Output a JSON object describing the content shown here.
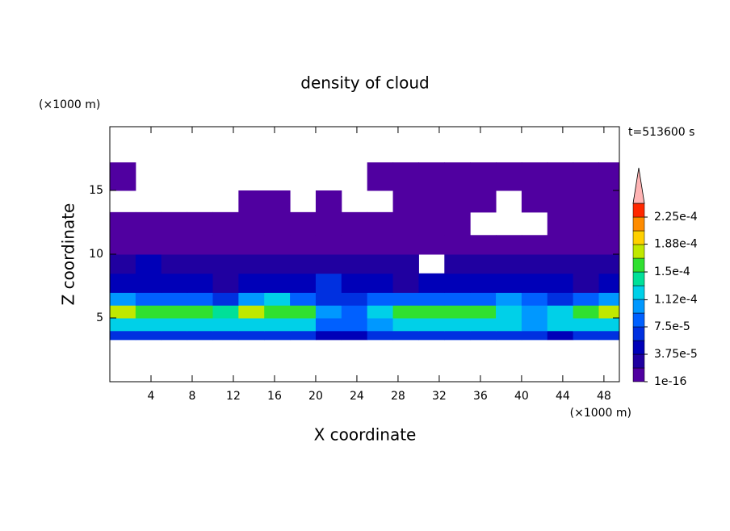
{
  "chart_data": {
    "type": "contour",
    "title": "density of cloud",
    "xlabel": "X coordinate",
    "ylabel": "Z coordinate",
    "xunit": "(×1000 m)",
    "yunit": "(×1000 m)",
    "time_label": "t=513600 s",
    "xlim": [
      0,
      49.5
    ],
    "ylim": [
      0,
      20
    ],
    "xticks": [
      4,
      8,
      12,
      16,
      20,
      24,
      28,
      32,
      36,
      40,
      44,
      48
    ],
    "yticks": [
      5,
      10,
      15
    ],
    "xbins": [
      0,
      2.5,
      5,
      7.5,
      10,
      12.5,
      15,
      17.5,
      20,
      22.5,
      25,
      27.5,
      30,
      32.5,
      35,
      37.5,
      40,
      42.5,
      45,
      47.5,
      49.5
    ],
    "zbins": [
      3.3,
      4,
      5,
      6,
      7,
      8.5,
      10,
      11.5,
      13.3,
      15,
      17.2
    ],
    "z": [
      [
        6e-05,
        6e-05,
        6e-05,
        6e-05,
        6e-05,
        6e-05,
        6e-05,
        6e-05,
        4e-05,
        4e-05,
        6e-05,
        6e-05,
        6e-05,
        6e-05,
        6e-05,
        6e-05,
        6e-05,
        5e-05,
        6e-05,
        6e-05
      ],
      [
        0.00012,
        0.000125,
        0.00012,
        0.00012,
        0.00012,
        0.000125,
        0.00012,
        0.00012,
        9e-05,
        8e-05,
        0.00011,
        0.00012,
        0.000125,
        0.00012,
        0.000125,
        0.00012,
        0.00011,
        0.00012,
        0.00012,
        0.000125
      ],
      [
        0.00017,
        0.00016,
        0.00015,
        0.00016,
        0.00014,
        0.00017,
        0.00015,
        0.00016,
        0.0001,
        8e-05,
        0.00013,
        0.00015,
        0.00015,
        0.00016,
        0.00016,
        0.00012,
        0.00011,
        0.00013,
        0.00015,
        0.00017
      ],
      [
        0.00011,
        9e-05,
        8e-05,
        9e-05,
        7e-05,
        0.0001,
        0.00013,
        8e-05,
        7e-05,
        7e-05,
        8e-05,
        9e-05,
        8e-05,
        9e-05,
        8e-05,
        0.0001,
        8e-05,
        7e-05,
        8e-05,
        0.0001
      ],
      [
        5e-05,
        4e-05,
        5e-05,
        4e-05,
        3e-05,
        4e-05,
        4e-05,
        5e-05,
        6e-05,
        4e-05,
        4e-05,
        3e-05,
        4e-05,
        5e-05,
        4e-05,
        5e-05,
        4e-05,
        4e-05,
        3e-05,
        4e-05
      ],
      [
        3e-05,
        4e-05,
        2.5e-05,
        2e-05,
        2e-05,
        3e-05,
        2e-05,
        2e-05,
        3e-05,
        3e-05,
        2.5e-05,
        2e-05,
        null,
        2.5e-05,
        3e-05,
        3e-05,
        2.5e-05,
        2e-05,
        2e-05,
        2.5e-05
      ],
      [
        1.5e-05,
        1e-05,
        1e-05,
        1e-05,
        8e-06,
        1e-05,
        1e-05,
        8e-06,
        1e-05,
        1e-05,
        1.2e-05,
        1e-05,
        1e-05,
        8e-06,
        1e-05,
        1.5e-05,
        1e-05,
        1e-05,
        1e-05,
        1.5e-05
      ],
      [
        5e-06,
        5e-06,
        5e-06,
        5e-06,
        5e-06,
        5e-06,
        5e-06,
        5e-06,
        5e-06,
        5e-06,
        5e-06,
        5e-06,
        5e-06,
        5e-06,
        null,
        null,
        null,
        5e-06,
        5e-06,
        5e-06
      ],
      [
        null,
        null,
        null,
        null,
        null,
        3e-06,
        3e-06,
        null,
        5e-06,
        null,
        null,
        3e-06,
        3e-06,
        3e-06,
        3e-06,
        null,
        3e-06,
        3e-06,
        3e-06,
        3e-06
      ],
      [
        2e-06,
        null,
        null,
        null,
        null,
        null,
        null,
        null,
        null,
        null,
        2e-06,
        2e-06,
        2e-06,
        2e-06,
        2e-06,
        2e-06,
        2e-06,
        2e-06,
        2e-06,
        2e-06
      ]
    ],
    "levels": [
      1e-16,
      1.875e-05,
      3.75e-05,
      5.625e-05,
      7.5e-05,
      9.375e-05,
      0.0001125,
      0.00013125,
      0.00015,
      0.00016875,
      0.0001875,
      0.00020625,
      0.000225,
      0.00024375
    ],
    "colors": [
      "#5000a0",
      "#2000a0",
      "#0000b8",
      "#0030e0",
      "#0060ff",
      "#0098ff",
      "#00d0e8",
      "#00e098",
      "#30e030",
      "#c0e800",
      "#ffd000",
      "#ff8c00",
      "#ff2800"
    ],
    "extend_color": "#ffb4b4",
    "cticks": [
      1e-16,
      {
        "value": 3.75e-05,
        "label": "3.75e-5"
      },
      {
        "value": 7.5e-05,
        "label": "7.5e-5"
      },
      {
        "value": 0.000112,
        "label": "1.12e-4"
      },
      {
        "value": 0.00015,
        "label": "1.5e-4"
      },
      {
        "value": 0.000188,
        "label": "1.88e-4"
      },
      {
        "value": 0.000225,
        "label": "2.25e-4"
      }
    ]
  }
}
